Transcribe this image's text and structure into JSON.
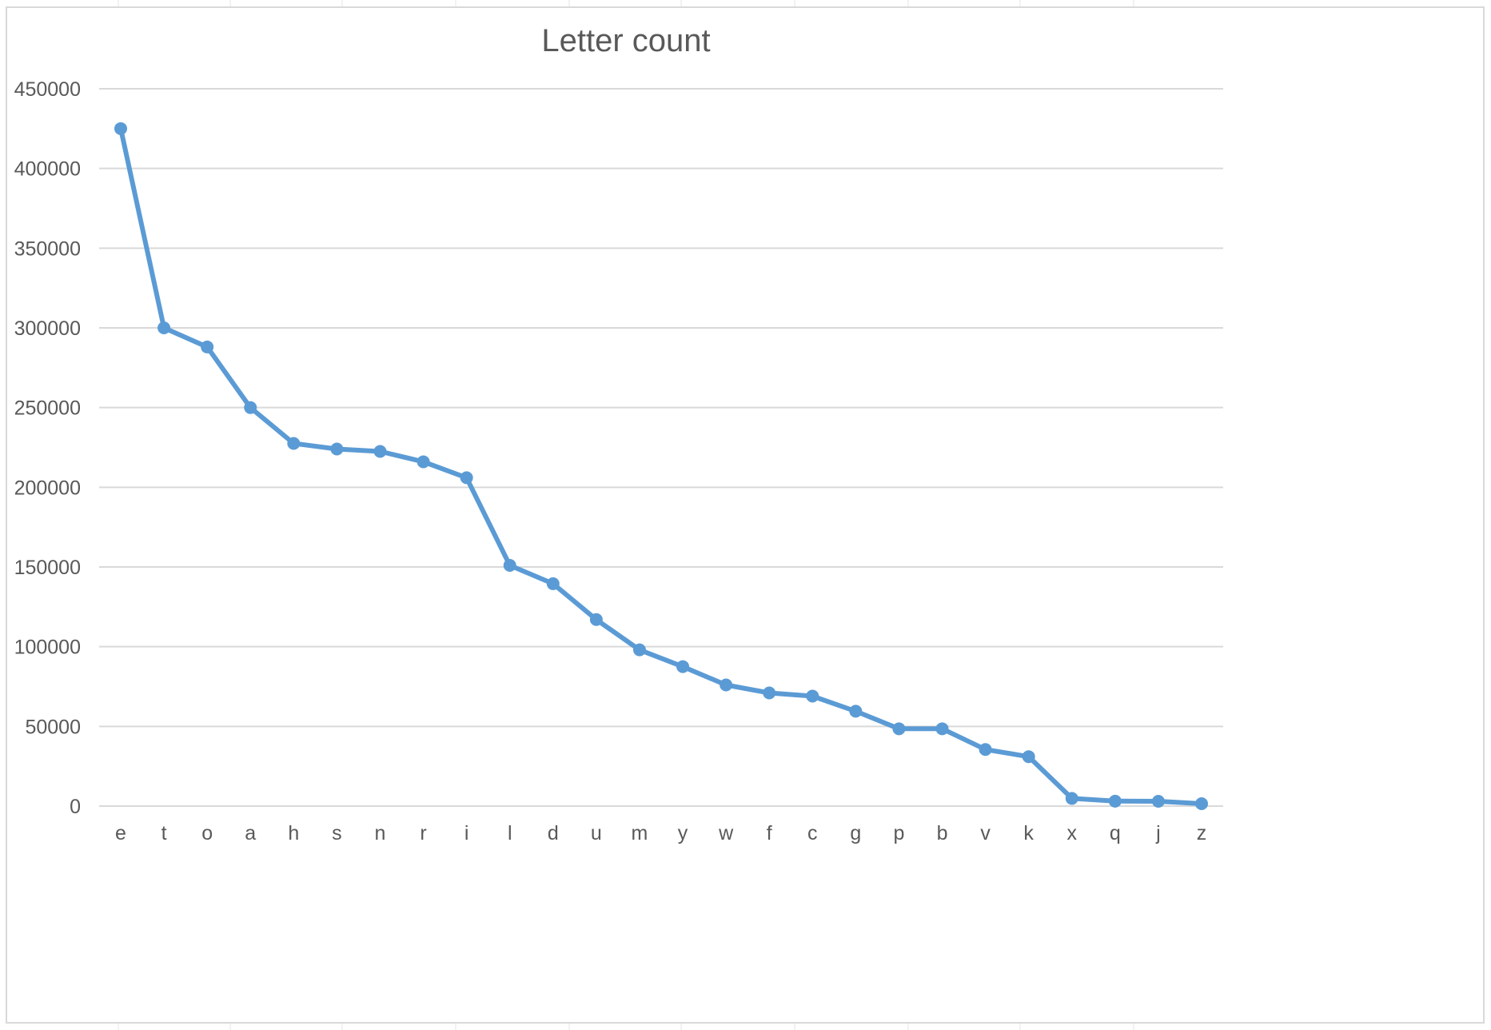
{
  "chart_data": {
    "type": "line",
    "title": "Letter count",
    "xlabel": "",
    "ylabel": "",
    "categories": [
      "e",
      "t",
      "o",
      "a",
      "h",
      "s",
      "n",
      "r",
      "i",
      "l",
      "d",
      "u",
      "m",
      "y",
      "w",
      "f",
      "c",
      "g",
      "p",
      "b",
      "v",
      "k",
      "x",
      "q",
      "j",
      "z"
    ],
    "series": [
      {
        "values": [
          425000,
          300000,
          288000,
          250000,
          227500,
          224000,
          222500,
          216000,
          206000,
          151000,
          139500,
          117000,
          98000,
          87500,
          76000,
          71000,
          69000,
          59500,
          48500,
          48500,
          35500,
          31000,
          4800,
          3100,
          3000,
          1500
        ],
        "color": "#5b9bd5"
      }
    ],
    "ylim": [
      0,
      450000
    ],
    "yticks": [
      "0",
      "50000",
      "100000",
      "150000",
      "200000",
      "250000",
      "300000",
      "350000",
      "400000",
      "450000"
    ],
    "grid": true,
    "legend": "none",
    "colors": {
      "line": "#5b9bd5",
      "grid": "#d9d9d9",
      "text": "#595959"
    }
  }
}
